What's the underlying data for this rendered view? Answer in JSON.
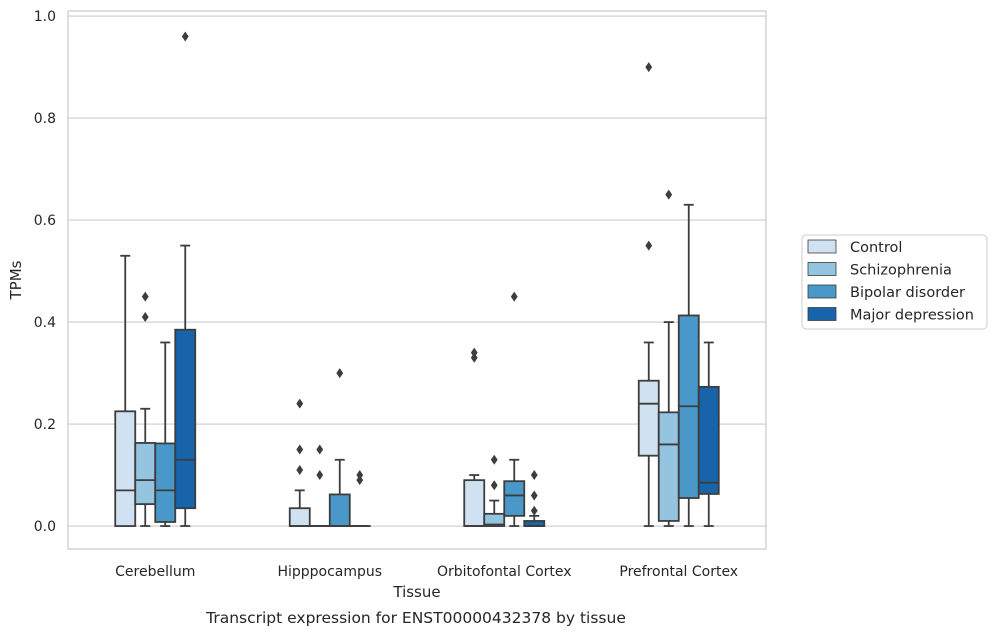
{
  "chart_data": {
    "type": "box",
    "caption": "Transcript expression for ENST00000432378 by tissue",
    "xlabel": "Tissue",
    "ylabel": "TPMs",
    "ylim": [
      -0.045,
      1.01
    ],
    "yticks": [
      "0.0",
      "0.2",
      "0.4",
      "0.6",
      "0.8",
      "1.0"
    ],
    "ytick_values": [
      0,
      0.2,
      0.4,
      0.6,
      0.8,
      1.0
    ],
    "grid": "horizontal",
    "legend_position": "right",
    "categories": [
      "Cerebellum",
      "Hipppocampus",
      "Orbitofontal Cortex",
      "Prefrontal Cortex"
    ],
    "series": [
      {
        "name": "Control",
        "color": "#d0e1f2",
        "boxes": [
          {
            "whislo": 0,
            "q1": 0,
            "med": 0.07,
            "q3": 0.225,
            "whishi": 0.53,
            "fliers": []
          },
          {
            "whislo": 0,
            "q1": 0,
            "med": 0,
            "q3": 0.035,
            "whishi": 0.07,
            "fliers": [
              0.11,
              0.15,
              0.24
            ]
          },
          {
            "whislo": 0,
            "q1": 0,
            "med": 0,
            "q3": 0.09,
            "whishi": 0.1,
            "fliers": [
              0.33,
              0.34
            ]
          },
          {
            "whislo": 0,
            "q1": 0.138,
            "med": 0.24,
            "q3": 0.285,
            "whishi": 0.36,
            "fliers": [
              0.55,
              0.9
            ]
          }
        ]
      },
      {
        "name": "Schizophrenia",
        "color": "#94c4df",
        "boxes": [
          {
            "whislo": 0,
            "q1": 0.043,
            "med": 0.09,
            "q3": 0.163,
            "whishi": 0.23,
            "fliers": [
              0.41,
              0.45
            ]
          },
          {
            "whislo": 0,
            "q1": 0,
            "med": 0,
            "q3": 0,
            "whishi": 0,
            "fliers": [
              0.1,
              0.15
            ]
          },
          {
            "whislo": 0,
            "q1": 0,
            "med": 0.003,
            "q3": 0.024,
            "whishi": 0.05,
            "fliers": [
              0.08,
              0.13
            ]
          },
          {
            "whislo": 0,
            "q1": 0.01,
            "med": 0.16,
            "q3": 0.223,
            "whishi": 0.4,
            "fliers": [
              0.65
            ]
          }
        ]
      },
      {
        "name": "Bipolar disorder",
        "color": "#4a98c9",
        "boxes": [
          {
            "whislo": 0,
            "q1": 0.008,
            "med": 0.07,
            "q3": 0.162,
            "whishi": 0.36,
            "fliers": []
          },
          {
            "whislo": 0,
            "q1": 0,
            "med": 0,
            "q3": 0.062,
            "whishi": 0.13,
            "fliers": [
              0.3
            ]
          },
          {
            "whislo": 0,
            "q1": 0.02,
            "med": 0.06,
            "q3": 0.088,
            "whishi": 0.13,
            "fliers": [
              0.45
            ]
          },
          {
            "whislo": 0,
            "q1": 0.055,
            "med": 0.235,
            "q3": 0.413,
            "whishi": 0.63,
            "fliers": []
          }
        ]
      },
      {
        "name": "Major depression",
        "color": "#1764ab",
        "boxes": [
          {
            "whislo": 0,
            "q1": 0.035,
            "med": 0.13,
            "q3": 0.385,
            "whishi": 0.55,
            "fliers": [
              0.96
            ]
          },
          {
            "whislo": 0,
            "q1": 0,
            "med": 0,
            "q3": 0,
            "whishi": 0,
            "fliers": [
              0.09,
              0.1
            ]
          },
          {
            "whislo": 0,
            "q1": 0,
            "med": 0,
            "q3": 0.01,
            "whishi": 0.02,
            "fliers": [
              0.03,
              0.06,
              0.1
            ]
          },
          {
            "whislo": 0,
            "q1": 0.063,
            "med": 0.085,
            "q3": 0.273,
            "whishi": 0.36,
            "fliers": []
          }
        ]
      }
    ]
  }
}
